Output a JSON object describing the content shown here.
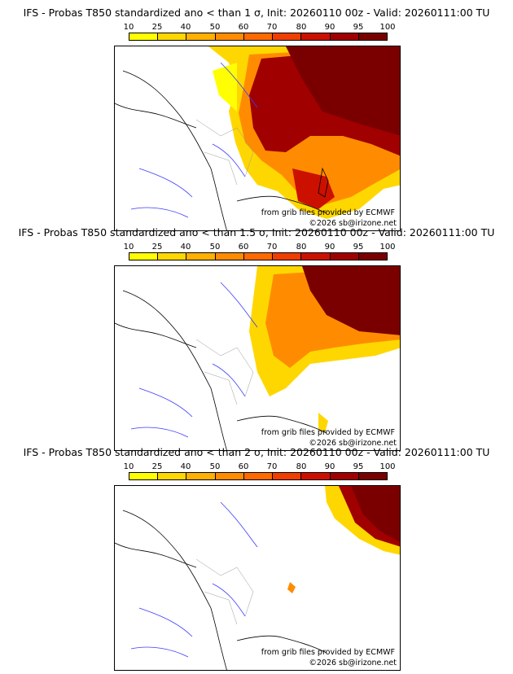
{
  "panels": [
    {
      "title": "IFS - Probas T850  standardized ano < than 1 σ, Init: 20260110 00z - Valid: 20260111:00 TU",
      "credit_source": "from grib files provided by ECMWF",
      "credit_copyright": "©2026 sb@irizone.net"
    },
    {
      "title": "IFS - Probas T850  standardized ano < than 1.5 σ, Init: 20260110 00z - Valid: 20260111:00 TU",
      "credit_source": "from grib files provided by ECMWF",
      "credit_copyright": "©2026 sb@irizone.net"
    },
    {
      "title": "IFS - Probas T850  standardized ano < than 2 σ, Init: 20260110 00z - Valid: 20260111:00 TU",
      "credit_source": "from grib files provided by ECMWF",
      "credit_copyright": "©2026 sb@irizone.net"
    }
  ],
  "colorscale": {
    "labels": [
      "10",
      "25",
      "40",
      "50",
      "60",
      "70",
      "80",
      "90",
      "95",
      "100"
    ],
    "colors": [
      "#ffff00",
      "#ffd700",
      "#ffb000",
      "#ff8c00",
      "#ff6a00",
      "#ee3e00",
      "#cc1000",
      "#a00000",
      "#7a0000"
    ]
  }
}
